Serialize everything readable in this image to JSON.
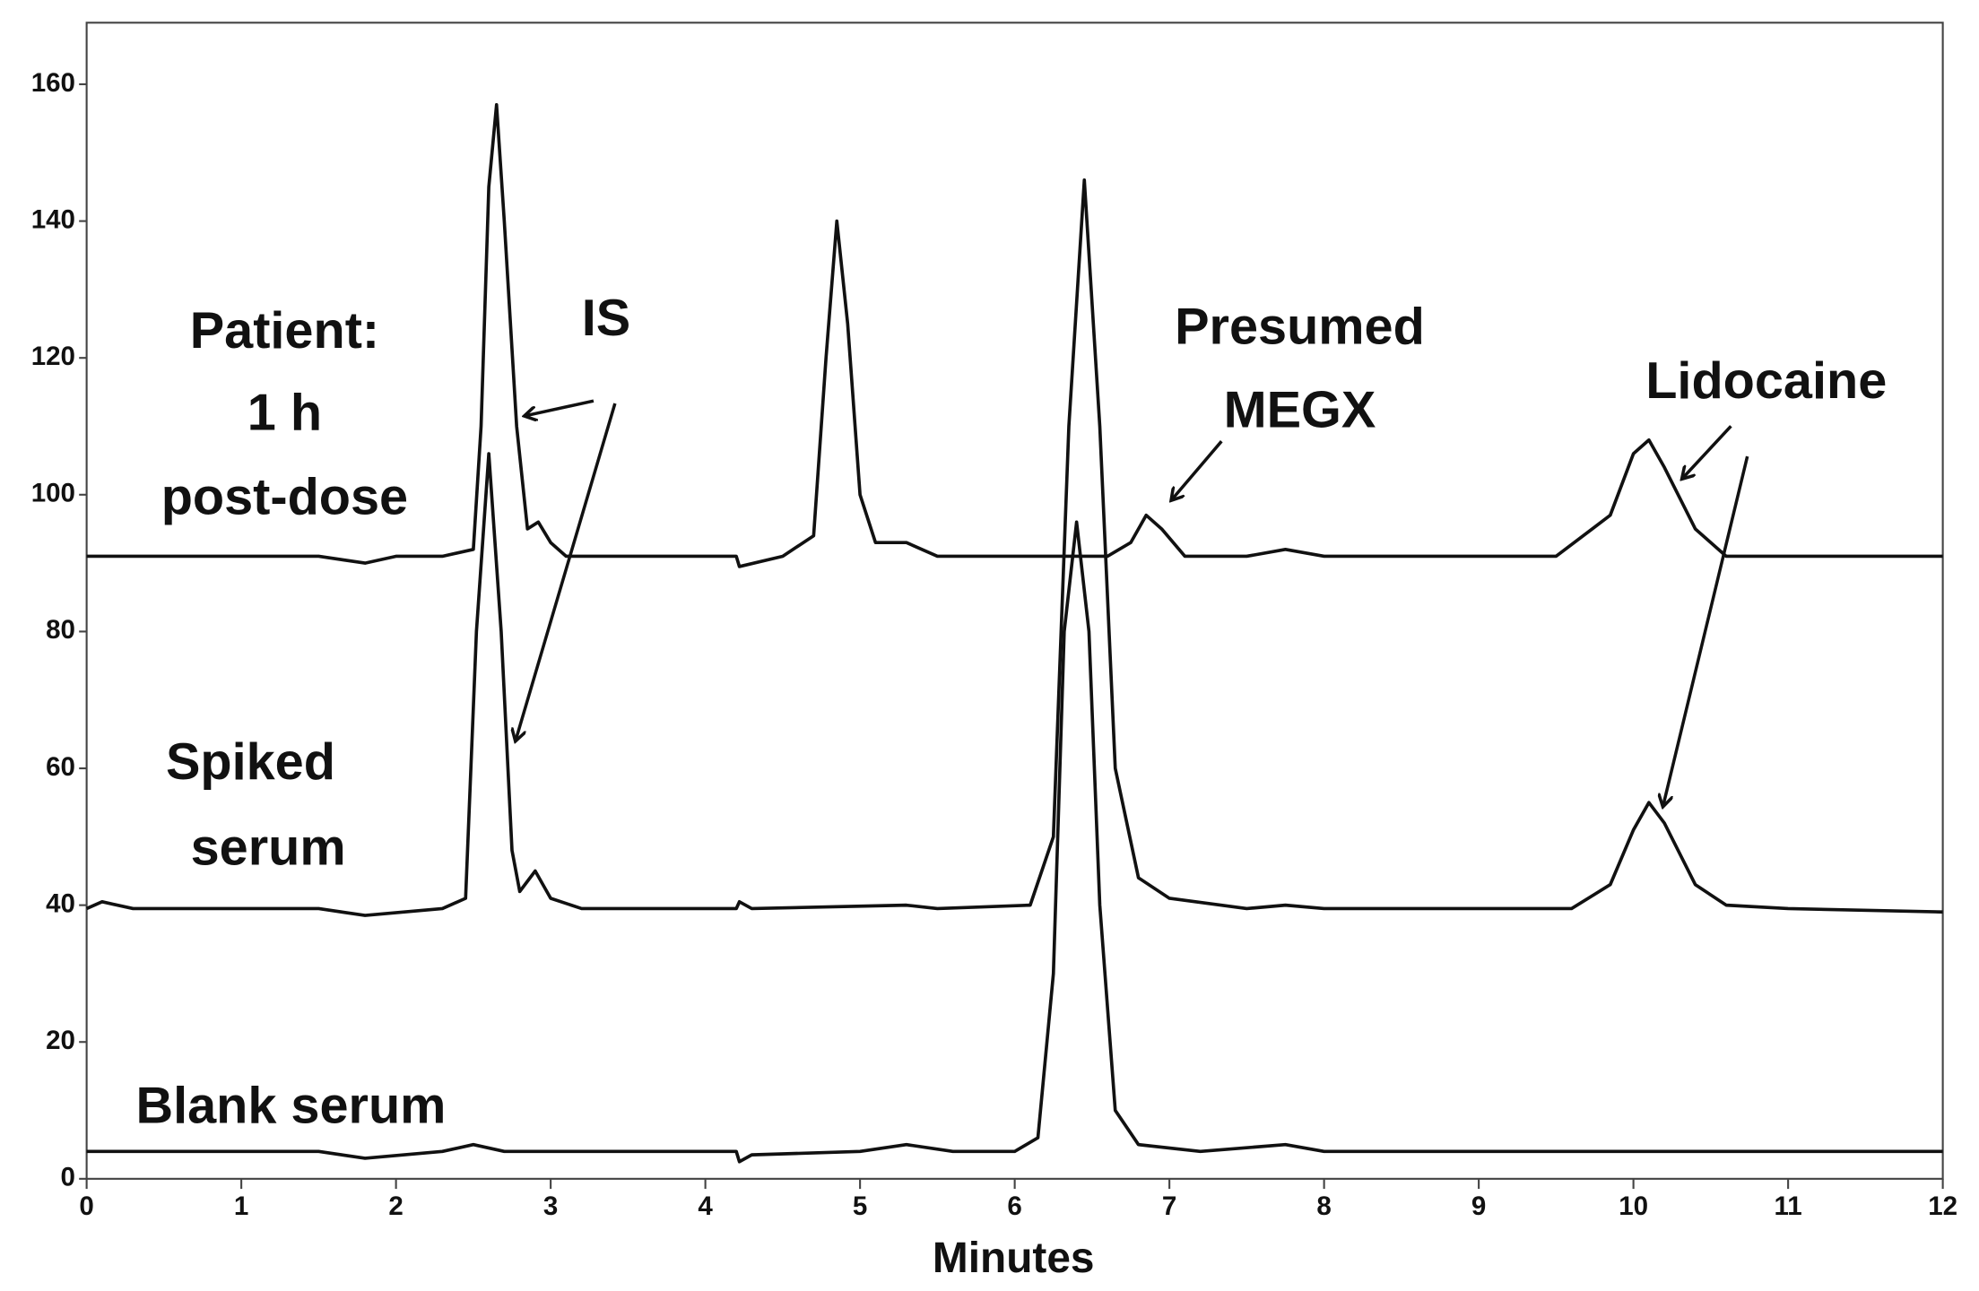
{
  "chart_data": {
    "type": "line",
    "x_label": "Minutes",
    "xlim": [
      0,
      12
    ],
    "xticks": [
      0,
      1,
      2,
      3,
      4,
      5,
      6,
      7,
      8,
      9,
      10,
      11,
      12
    ],
    "ylim": [
      0,
      169
    ],
    "yticks": [
      0,
      20,
      40,
      60,
      80,
      100,
      120,
      140,
      160
    ],
    "grid": false,
    "series": [
      {
        "color": "#111111",
        "x": [
          0,
          1.5,
          1.8,
          2.0,
          2.3,
          2.5,
          2.55,
          2.6,
          2.65,
          2.7,
          2.78,
          2.85,
          2.92,
          3.0,
          3.1,
          3.5,
          4.2,
          4.22,
          4.5,
          4.7,
          4.78,
          4.85,
          4.92,
          5.0,
          5.1,
          5.3,
          5.5,
          6.0,
          6.6,
          6.75,
          6.85,
          6.95,
          7.1,
          7.5,
          7.75,
          8,
          9.5,
          9.85,
          10.0,
          10.1,
          10.2,
          10.4,
          10.6,
          11,
          12
        ],
        "values": [
          91,
          91,
          90,
          91,
          91,
          92,
          110,
          145,
          157,
          140,
          110,
          95,
          96,
          93,
          91,
          91,
          91,
          89.5,
          91,
          94,
          120,
          140,
          125,
          100,
          93,
          93,
          91,
          91,
          91,
          93,
          97,
          95,
          91,
          91,
          92,
          91,
          91,
          97,
          106,
          108,
          104,
          95,
          91,
          91,
          91
        ]
      },
      {
        "color": "#111111",
        "x": [
          0,
          0.1,
          0.3,
          1.5,
          1.8,
          2.3,
          2.45,
          2.52,
          2.6,
          2.68,
          2.75,
          2.8,
          2.9,
          3.0,
          3.2,
          4.2,
          4.22,
          4.3,
          5.3,
          5.5,
          6.1,
          6.25,
          6.35,
          6.45,
          6.55,
          6.65,
          6.8,
          7.0,
          7.5,
          7.75,
          8,
          9.6,
          9.85,
          10.0,
          10.1,
          10.2,
          10.4,
          10.6,
          11,
          12
        ],
        "values": [
          39.5,
          40.5,
          39.5,
          39.5,
          38.5,
          39.5,
          41,
          80,
          106,
          80,
          48,
          42,
          45,
          41,
          39.5,
          39.5,
          40.5,
          39.5,
          40,
          39.5,
          40,
          50,
          110,
          146,
          110,
          60,
          44,
          41,
          39.5,
          40,
          39.5,
          39.5,
          43,
          51,
          55,
          52,
          43,
          40,
          39.5,
          39
        ]
      },
      {
        "color": "#111111",
        "x": [
          0,
          0.2,
          1.5,
          1.8,
          2.3,
          2.5,
          2.7,
          3.0,
          4.2,
          4.22,
          4.3,
          5.0,
          5.3,
          5.6,
          6.0,
          6.15,
          6.25,
          6.32,
          6.4,
          6.48,
          6.55,
          6.65,
          6.8,
          7.2,
          7.75,
          8,
          12
        ],
        "values": [
          4,
          4,
          4,
          3,
          4,
          5,
          4,
          4,
          4,
          2.5,
          3.5,
          4,
          5,
          4,
          4,
          6,
          30,
          80,
          96,
          80,
          40,
          10,
          5,
          4,
          5,
          4,
          4
        ]
      }
    ],
    "annotations": [
      "Patient:",
      "1 h",
      "post-dose",
      "IS",
      "Presumed",
      "MEGX",
      "Lidocaine",
      "Spiked",
      "serum",
      "Blank serum"
    ]
  }
}
